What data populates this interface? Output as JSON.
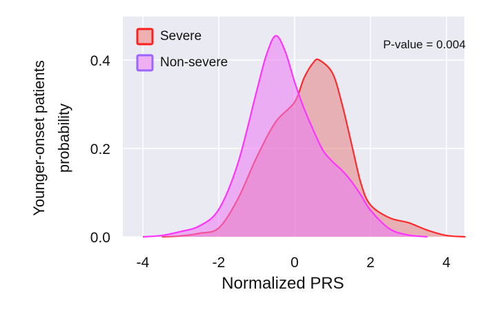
{
  "chart_data": {
    "type": "area",
    "title": "",
    "xlabel": "Normalized PRS",
    "ylabel": [
      "Younger-onset patients",
      "probability"
    ],
    "xlim": [
      -4.5,
      4.5
    ],
    "ylim": [
      0,
      0.5
    ],
    "xticks": [
      "-4",
      "-2",
      "0",
      "2",
      "4"
    ],
    "xtick_values": [
      -4,
      -2,
      0,
      2,
      4
    ],
    "yticks": [
      "0.0",
      "0.2",
      "0.4"
    ],
    "ytick_values": [
      0,
      0.2,
      0.4
    ],
    "grid": true,
    "legend_position": "top-left",
    "annotation": "P-value = 0.004",
    "background_color": "#eaeaf2",
    "series": [
      {
        "name": "Severe",
        "line_color": "#ff2a2a",
        "fill_color": "rgba(225,90,90,0.40)",
        "legend_border": "#ff2020",
        "x": [
          -3.5,
          -3,
          -2.5,
          -2,
          -1.5,
          -1,
          -0.5,
          0,
          0.25,
          0.5,
          0.65,
          1,
          1.25,
          1.5,
          1.75,
          2,
          2.5,
          3,
          3.5,
          4,
          4.5
        ],
        "y": [
          0,
          0.002,
          0.008,
          0.02,
          0.085,
          0.18,
          0.26,
          0.305,
          0.36,
          0.395,
          0.4,
          0.37,
          0.3,
          0.21,
          0.12,
          0.072,
          0.043,
          0.032,
          0.015,
          0.003,
          0
        ]
      },
      {
        "name": "Non-severe",
        "line_color": "#ff33ff",
        "fill_color": "rgba(235,120,245,0.55)",
        "legend_border": "#9966ff",
        "x": [
          -4,
          -3.5,
          -3,
          -2.5,
          -2,
          -1.5,
          -1,
          -0.75,
          -0.5,
          -0.25,
          0,
          0.25,
          0.5,
          0.75,
          1,
          1.25,
          1.5,
          1.75,
          2,
          2.5,
          3,
          3.5
        ],
        "y": [
          0,
          0.003,
          0.012,
          0.025,
          0.062,
          0.165,
          0.33,
          0.41,
          0.455,
          0.42,
          0.35,
          0.29,
          0.24,
          0.195,
          0.17,
          0.15,
          0.125,
          0.094,
          0.06,
          0.018,
          0.004,
          0
        ]
      }
    ]
  }
}
